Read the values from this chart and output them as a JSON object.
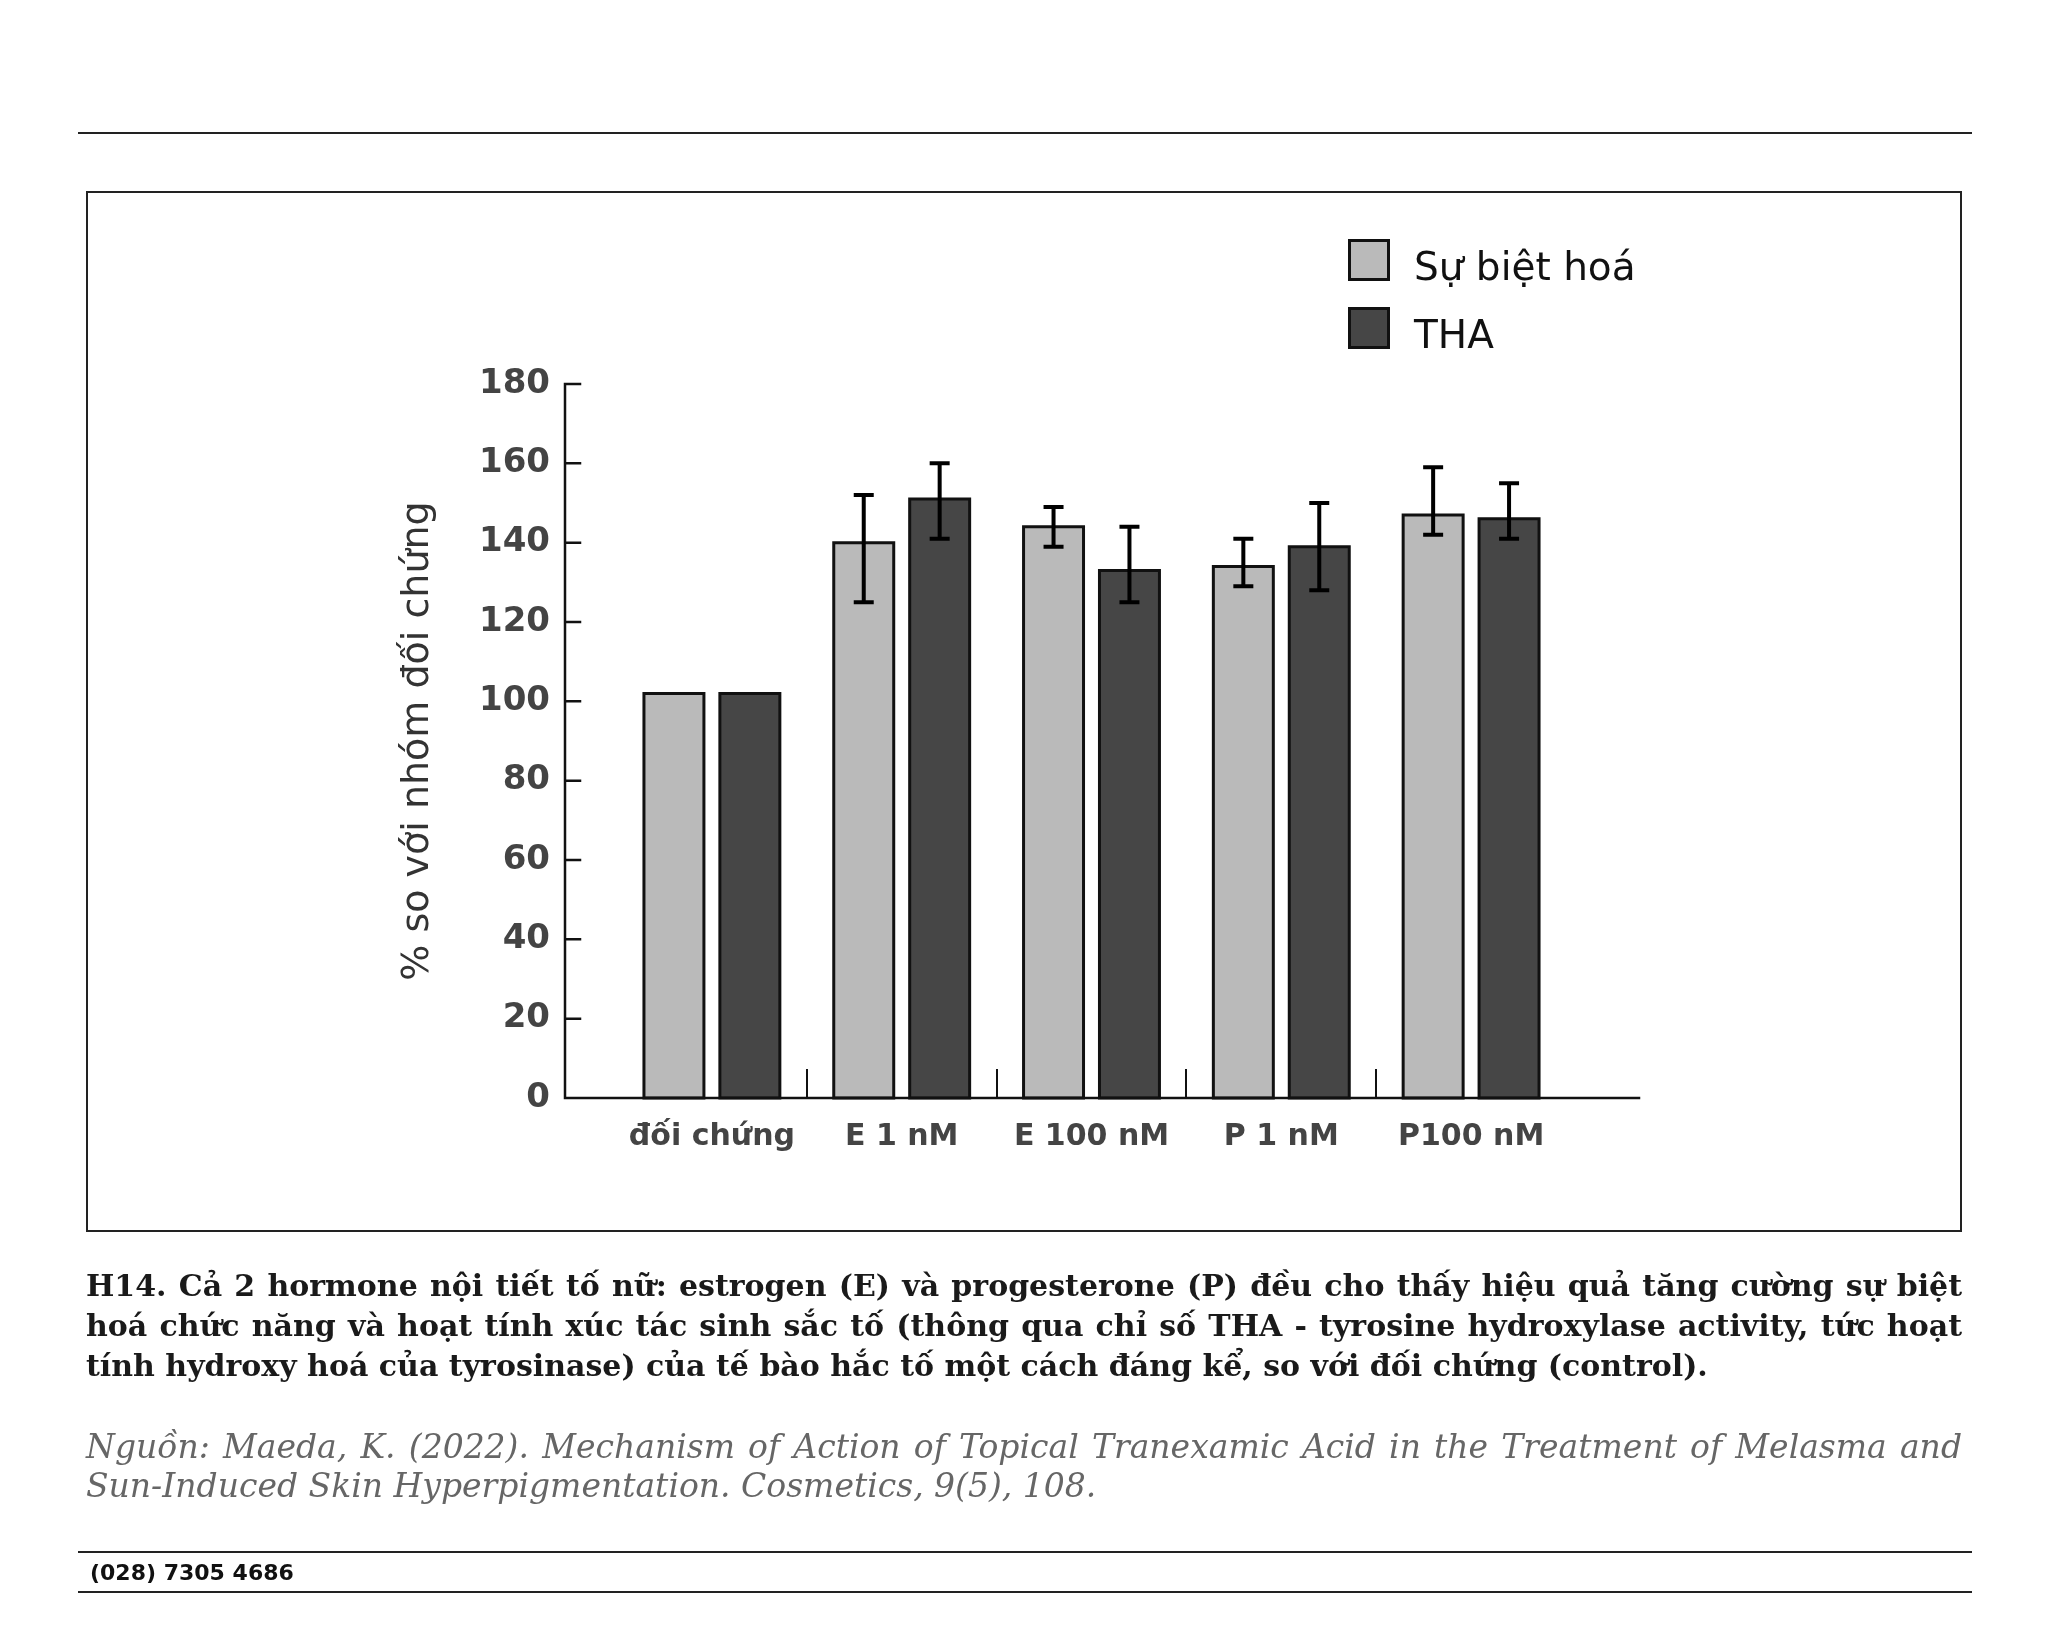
{
  "chart_data": {
    "type": "bar",
    "categories": [
      "đối chứng",
      "E 1 nM",
      "E 100 nM",
      "P 1 nM",
      "P100 nM"
    ],
    "series": [
      {
        "name": "Sự biệt hoá",
        "color": "#bababa",
        "values": [
          102,
          140,
          144,
          134,
          147
        ],
        "errors": [
          null,
          [
            125,
            152
          ],
          [
            139,
            149
          ],
          [
            129,
            141
          ],
          [
            142,
            159
          ]
        ]
      },
      {
        "name": "THA",
        "color": "#464646",
        "values": [
          102,
          151,
          133,
          139,
          146
        ],
        "errors": [
          null,
          [
            141,
            160
          ],
          [
            125,
            144
          ],
          [
            128,
            150
          ],
          [
            141,
            155
          ]
        ]
      }
    ],
    "ylabel": "% so với nhóm đối chứng",
    "ylim": [
      0,
      180
    ],
    "yticks": [
      0,
      20,
      40,
      60,
      80,
      100,
      120,
      140,
      160,
      180
    ],
    "grid": false,
    "legend": "top right",
    "annotations": [
      "H14. Cả 2 hormone nội tiết tố nữ: estrogen (E) và progesterone (P) đều cho thấy hiệu quả tăng cường sự biệt hoá chức năng và hoạt tính xúc tác sinh sắc tố (thông qua chỉ số THA - tyrosine hydroxylase activity, tức hoạt tính hydroxy hoá của tyrosinase) của tế bào hắc tố một cách đáng kể, so với đối chứng (control).",
      "Nguồn: Maeda, K. (2022). Mechanism of Action of Topical Tranexamic Acid in the Treatment of Melasma and Sun-Induced Skin Hyperpigmentation. Cosmetics, 9(5), 108.",
      "(028) 7305 4686"
    ]
  }
}
